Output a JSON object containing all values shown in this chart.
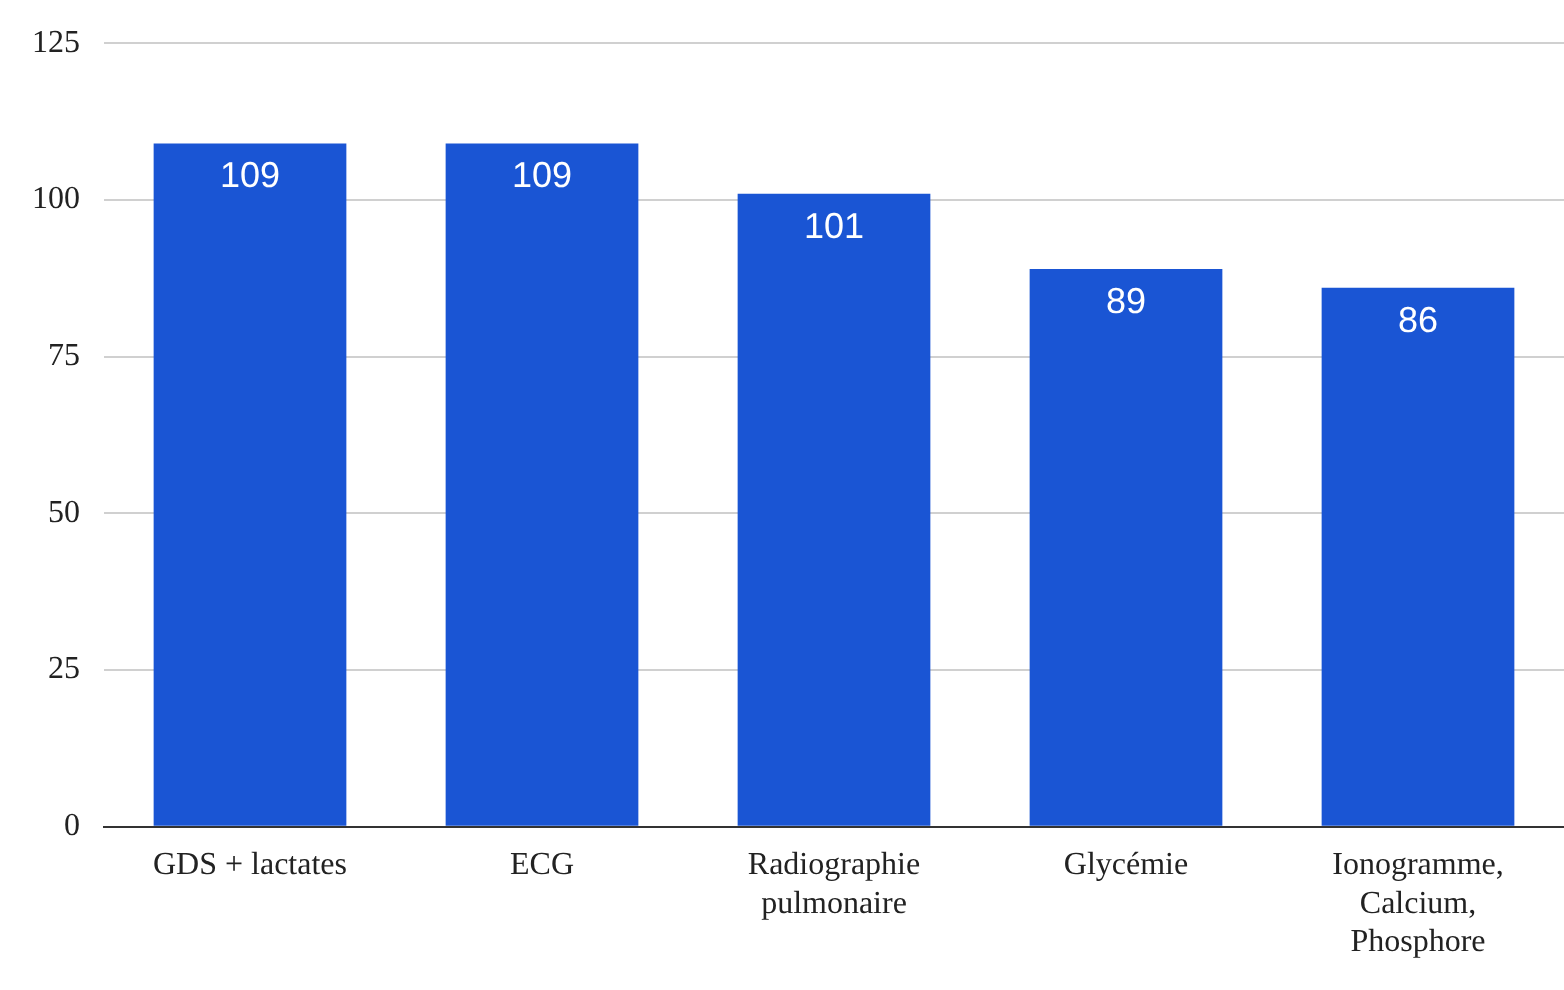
{
  "chart_data": {
    "type": "bar",
    "categories": [
      "GDS + lactates",
      "ECG",
      "Radiographie pulmonaire",
      "Glycémie",
      "Ionogramme, Calcium, Phosphore"
    ],
    "values": [
      109,
      109,
      101,
      89,
      86
    ],
    "color": "#1a55d4",
    "ylim": [
      0,
      125
    ],
    "yticks": [
      0,
      25,
      50,
      75,
      100,
      125
    ],
    "grid": "y",
    "data_labels": true,
    "legend": false
  }
}
